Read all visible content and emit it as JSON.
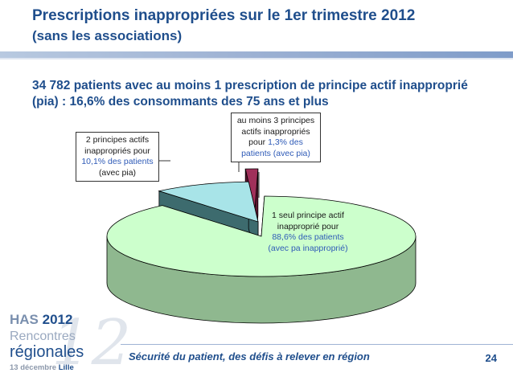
{
  "slide": {
    "title": "Prescriptions inappropriées sur le 1er trimestre 2012",
    "subtitle": "(sans les associations)",
    "intro_line1": "34 782 patients avec au moins 1 prescription de principe actif inapproprié",
    "intro_line2": "(pia) : 16,6% des consommants des 75 ans et plus",
    "footer": "Sécurité du patient, des défis à relever en région",
    "page_number": "24"
  },
  "logo": {
    "line1_prefix": "HAS",
    "line1_year": "2012",
    "line2": "Rencontres",
    "line3": "régionales",
    "line4_date": "13 décembre",
    "line4_city": "Lille",
    "watermark": "12"
  },
  "chart_data": {
    "type": "pie",
    "style": "3d-exploded",
    "slices": [
      {
        "key": "one",
        "value": 88.6,
        "color": "#ccffcc",
        "side_color": "#8fb88f",
        "label_lines": [
          "1 seul principe actif",
          "inapproprié pour"
        ],
        "value_text": "88,6% des patients",
        "label_tail": "(avec pa inapproprié)"
      },
      {
        "key": "two",
        "value": 10.1,
        "color": "#a8e4e8",
        "side_color": "#3d6b6e",
        "label_lines": [
          "2 principes actifs",
          "inappropriés pour"
        ],
        "value_text": "10,1% des patients",
        "label_tail": "(avec pia)"
      },
      {
        "key": "three",
        "value": 1.3,
        "color": "#a0305a",
        "side_color": "#5c1530",
        "label_lines": [
          "au moins 3 principes",
          "actifs inappropriés",
          "pour"
        ],
        "value_text": "1,3% des",
        "label_tail": "patients (avec pia)"
      }
    ]
  }
}
